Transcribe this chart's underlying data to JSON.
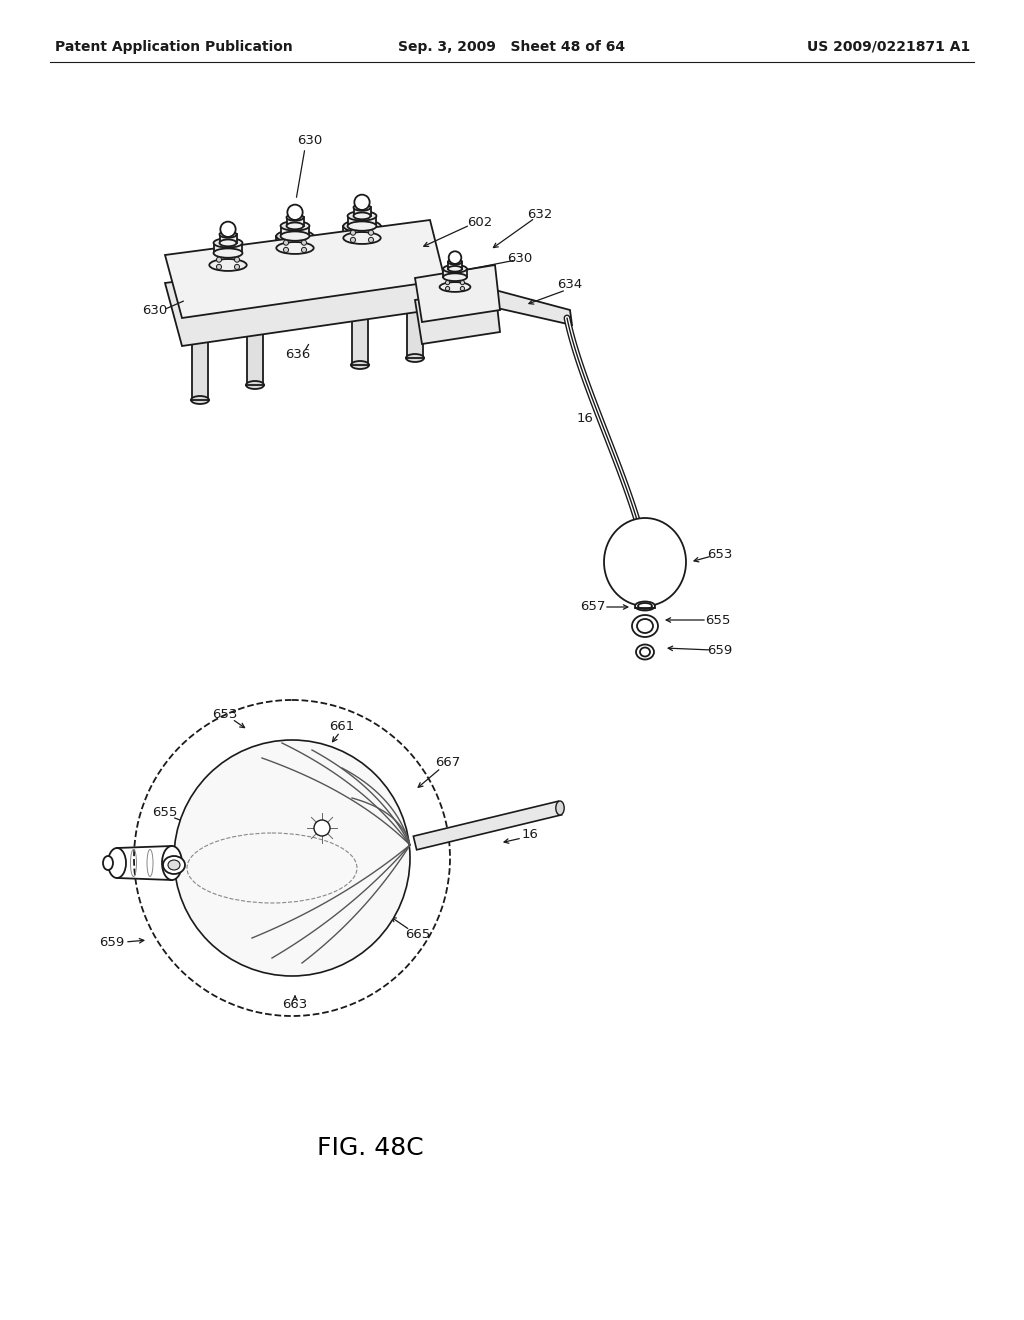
{
  "bg_color": "#ffffff",
  "header_left": "Patent Application Publication",
  "header_center": "Sep. 3, 2009   Sheet 48 of 64",
  "header_right": "US 2009/0221871 A1",
  "figure_label": "FIG. 48C",
  "header_fontsize": 10,
  "figure_label_fontsize": 18,
  "line_color": "#1a1a1a",
  "label_fontsize": 9.5
}
